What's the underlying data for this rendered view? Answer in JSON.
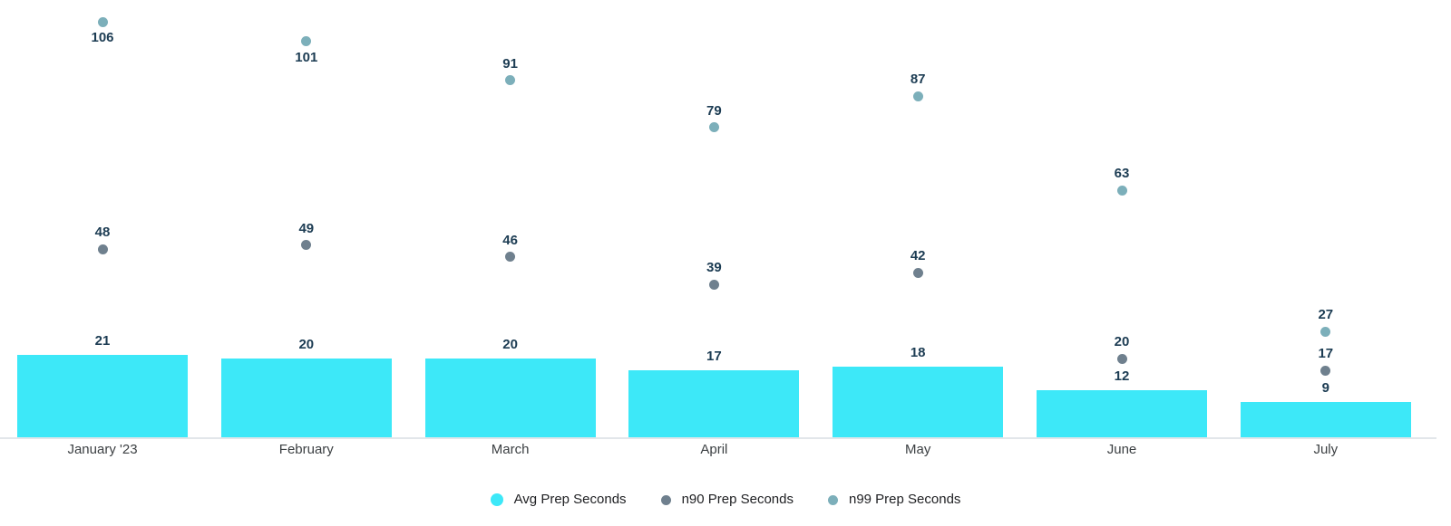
{
  "chart_data": {
    "type": "bar",
    "subtype": "bar-with-point-series",
    "title": "",
    "xlabel": "",
    "ylabel": "",
    "ylim": [
      0,
      112
    ],
    "grid": false,
    "legend_position": "bottom-center",
    "categories": [
      "January '23",
      "February",
      "March",
      "April",
      "May",
      "June",
      "July"
    ],
    "series": [
      {
        "name": "Avg Prep Seconds",
        "type": "bar",
        "color": "#3DE8F8",
        "values": [
          21,
          20,
          20,
          17,
          18,
          12,
          9
        ]
      },
      {
        "name": "n90 Prep Seconds",
        "type": "point",
        "color": "#6F808E",
        "values": [
          48,
          49,
          46,
          39,
          42,
          20,
          17
        ],
        "label_below": [
          false,
          false,
          false,
          false,
          false,
          false,
          false
        ]
      },
      {
        "name": "n99 Prep Seconds",
        "type": "point",
        "color": "#7CAFBA",
        "values": [
          106,
          101,
          91,
          79,
          87,
          63,
          27
        ],
        "label_below": [
          true,
          true,
          false,
          false,
          false,
          false,
          false
        ]
      }
    ],
    "annotations": "every bar and point is labeled with its value",
    "colors": {
      "value_label": "#1C3C53",
      "axis_label": "#3C4043",
      "legend_label": "#202124",
      "axis_line": "#E2E6EA",
      "background": "#FFFFFF"
    }
  }
}
